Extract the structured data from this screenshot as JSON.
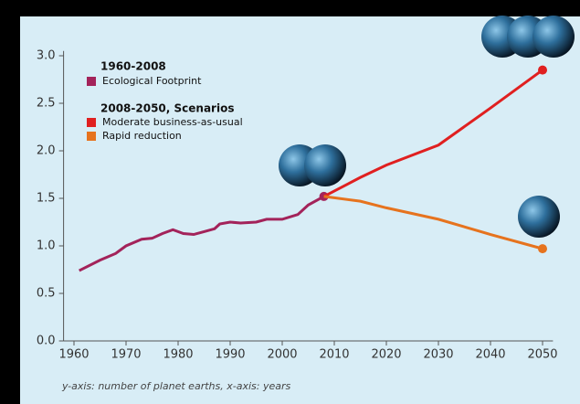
{
  "chart_data": {
    "type": "line",
    "legend_groups": [
      "1960-2008",
      "2008-2050, Scenarios"
    ],
    "caption": "y-axis: number of planet earths, x-axis: years",
    "series": [
      {
        "name": "Ecological Footprint",
        "color": "#a3235a",
        "x": [
          1961,
          1965,
          1968,
          1970,
          1973,
          1975,
          1977,
          1979,
          1981,
          1983,
          1985,
          1987,
          1988,
          1990,
          1992,
          1995,
          1997,
          2000,
          2003,
          2005,
          2008
        ],
        "values": [
          0.74,
          0.85,
          0.92,
          1.0,
          1.07,
          1.08,
          1.13,
          1.17,
          1.13,
          1.12,
          1.15,
          1.18,
          1.23,
          1.25,
          1.24,
          1.25,
          1.28,
          1.28,
          1.33,
          1.43,
          1.52
        ]
      },
      {
        "name": "Moderate business-as-usual",
        "color": "#e02020",
        "x": [
          2008,
          2015,
          2020,
          2030,
          2040,
          2050
        ],
        "values": [
          1.52,
          1.72,
          1.85,
          2.06,
          2.45,
          2.85
        ]
      },
      {
        "name": "Rapid reduction",
        "color": "#e6731e",
        "x": [
          2008,
          2015,
          2020,
          2030,
          2040,
          2050
        ],
        "values": [
          1.52,
          1.47,
          1.4,
          1.28,
          1.12,
          0.97
        ]
      }
    ],
    "xlim": [
      1958,
      2052
    ],
    "xticks": [
      1960,
      1970,
      1980,
      1990,
      2000,
      2010,
      2020,
      2030,
      2040,
      2050
    ],
    "ylim": [
      0,
      3.05
    ],
    "yticks": [
      {
        "value": 0,
        "label": "0.0"
      },
      0.5,
      {
        "value": 1,
        "label": "1.0"
      },
      1.5,
      {
        "value": 2,
        "label": "2.0"
      },
      2.5,
      {
        "value": 3,
        "label": "3.0"
      }
    ],
    "grid": false
  }
}
